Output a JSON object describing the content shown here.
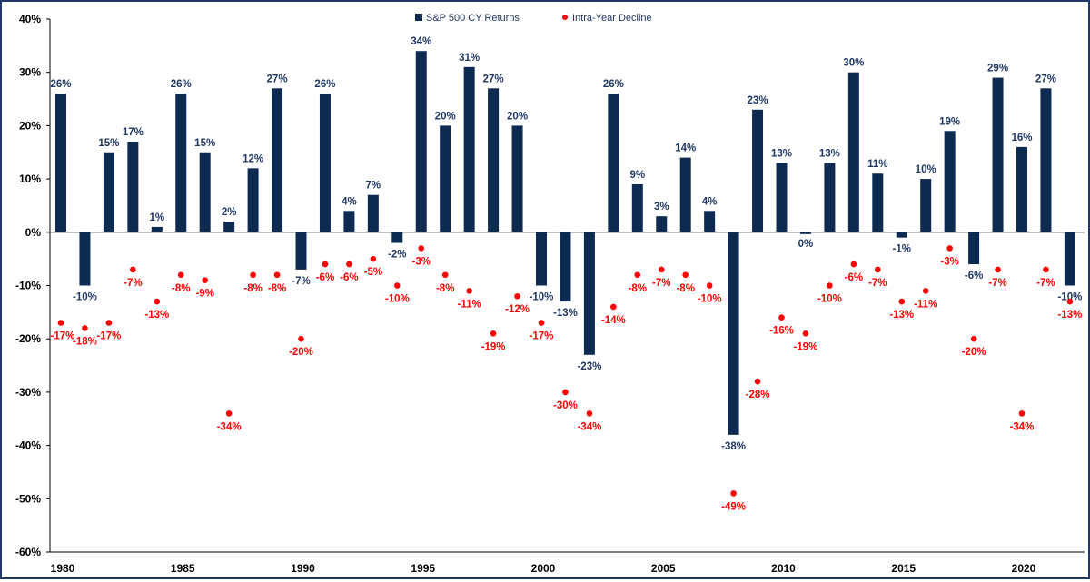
{
  "chart_data": {
    "type": "bar",
    "title": "",
    "xlabel": "",
    "ylabel": "",
    "ylim": [
      -60,
      40
    ],
    "yticks": [
      "40%",
      "30%",
      "20%",
      "10%",
      "0%",
      "-10%",
      "-20%",
      "-30%",
      "-40%",
      "-50%",
      "-60%"
    ],
    "ytick_values": [
      40,
      30,
      20,
      10,
      0,
      -10,
      -20,
      -30,
      -40,
      -50,
      -60
    ],
    "xtick_labels": [
      "1980",
      "1985",
      "1990",
      "1995",
      "2000",
      "2005",
      "2010",
      "2015",
      "2020"
    ],
    "grid": false,
    "legend_position": "top",
    "categories": [
      1980,
      1981,
      1982,
      1983,
      1984,
      1985,
      1986,
      1987,
      1988,
      1989,
      1990,
      1991,
      1992,
      1993,
      1994,
      1995,
      1996,
      1997,
      1998,
      1999,
      2000,
      2001,
      2002,
      2003,
      2004,
      2005,
      2006,
      2007,
      2008,
      2009,
      2010,
      2011,
      2012,
      2013,
      2014,
      2015,
      2016,
      2017,
      2018,
      2019,
      2020,
      2021,
      2022
    ],
    "series": [
      {
        "name": "S&P 500 CY Returns",
        "type": "bar",
        "color": "#0d2a50",
        "label_color": "#1f3864",
        "values": [
          26,
          -10,
          15,
          17,
          1,
          26,
          15,
          2,
          12,
          27,
          -7,
          26,
          4,
          7,
          -2,
          34,
          20,
          31,
          27,
          20,
          -10,
          -13,
          -23,
          26,
          9,
          3,
          14,
          4,
          -38,
          23,
          13,
          0,
          13,
          30,
          11,
          -1,
          10,
          19,
          -6,
          29,
          16,
          27,
          -10
        ]
      },
      {
        "name": "Intra-Year Decline",
        "type": "scatter",
        "color": "#ff0000",
        "label_color": "#ff0000",
        "values": [
          -17,
          -18,
          -17,
          -7,
          -13,
          -8,
          -9,
          -34,
          -8,
          -8,
          -20,
          -6,
          -6,
          -5,
          -10,
          -3,
          -8,
          -11,
          -19,
          -12,
          -17,
          -30,
          -34,
          -14,
          -8,
          -7,
          -8,
          -10,
          -49,
          -28,
          -16,
          -19,
          -10,
          -6,
          -7,
          -13,
          -11,
          -3,
          -20,
          -7,
          -34,
          -7,
          -13
        ]
      }
    ]
  }
}
